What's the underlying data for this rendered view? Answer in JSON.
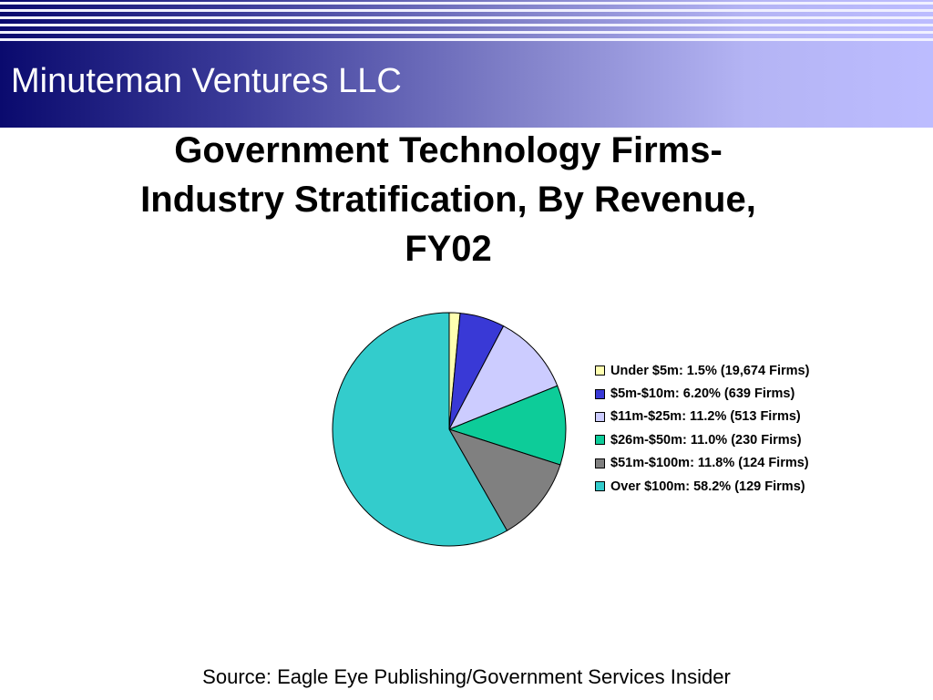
{
  "header": {
    "title": "Minuteman Ventures LLC"
  },
  "chart_data": {
    "type": "pie",
    "title_lines": [
      "Government Technology Firms-",
      "Industry Stratification, By Revenue,",
      "FY02"
    ],
    "slices": [
      {
        "label": "Under $5m: 1.5% (19,674 Firms)",
        "value": 1.5,
        "color": "#ffffb0"
      },
      {
        "label": "$5m-$10m: 6.20% (639 Firms)",
        "value": 6.2,
        "color": "#3939d6"
      },
      {
        "label": "$11m-$25m: 11.2% (513 Firms)",
        "value": 11.2,
        "color": "#ccccff"
      },
      {
        "label": "$26m-$50m: 11.0% (230 Firms)",
        "value": 11.0,
        "color": "#0dcc99"
      },
      {
        "label": "$51m-$100m: 11.8% (124 Firms)",
        "value": 11.8,
        "color": "#808080"
      },
      {
        "label": "Over $100m: 58.2% (129 Firms)",
        "value": 58.2,
        "color": "#33cccc"
      }
    ],
    "start_angle": "12 o'clock",
    "direction": "clockwise",
    "legend_position": "right"
  },
  "source": "Source: Eagle Eye Publishing/Government Services Insider"
}
